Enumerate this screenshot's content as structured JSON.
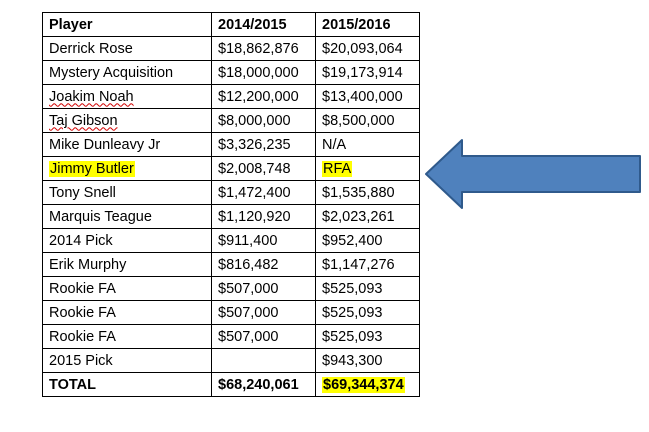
{
  "table": {
    "headers": [
      "Player",
      "2014/2015",
      "2015/2016"
    ],
    "rows": [
      {
        "player": "Derrick Rose",
        "y2014": "$18,862,876",
        "y2015": "$20,093,064"
      },
      {
        "player": "Mystery Acquisition",
        "y2014": "$18,000,000",
        "y2015": "$19,173,914"
      },
      {
        "player": "Joakim Noah",
        "y2014": "$12,200,000",
        "y2015": "$13,400,000"
      },
      {
        "player": "Taj Gibson",
        "y2014": "$8,000,000",
        "y2015": "$8,500,000"
      },
      {
        "player": "Mike Dunleavy Jr",
        "y2014": "$3,326,235",
        "y2015": "N/A"
      },
      {
        "player": "Jimmy Butler",
        "y2014": "$2,008,748",
        "y2015": "RFA"
      },
      {
        "player": "Tony Snell",
        "y2014": "$1,472,400",
        "y2015": "$1,535,880"
      },
      {
        "player": "Marquis Teague",
        "y2014": "$1,120,920",
        "y2015": "$2,023,261"
      },
      {
        "player": "2014 Pick",
        "y2014": "$911,400",
        "y2015": "$952,400"
      },
      {
        "player": "Erik Murphy",
        "y2014": "$816,482",
        "y2015": "$1,147,276"
      },
      {
        "player": "Rookie FA",
        "y2014": "$507,000",
        "y2015": "$525,093"
      },
      {
        "player": "Rookie FA",
        "y2014": "$507,000",
        "y2015": "$525,093"
      },
      {
        "player": "Rookie FA",
        "y2014": "$507,000",
        "y2015": "$525,093"
      },
      {
        "player": "2015 Pick",
        "y2014": "",
        "y2015": "$943,300"
      }
    ],
    "total": {
      "label": "TOTAL",
      "y2014": "$68,240,061",
      "y2015": "$69,344,374"
    }
  },
  "colors": {
    "highlight": "#ffff00",
    "arrow_fill": "#4f81bd",
    "arrow_stroke": "#2f5a8c"
  },
  "arrow": {
    "icon": "left-arrow-icon",
    "direction": "left"
  }
}
